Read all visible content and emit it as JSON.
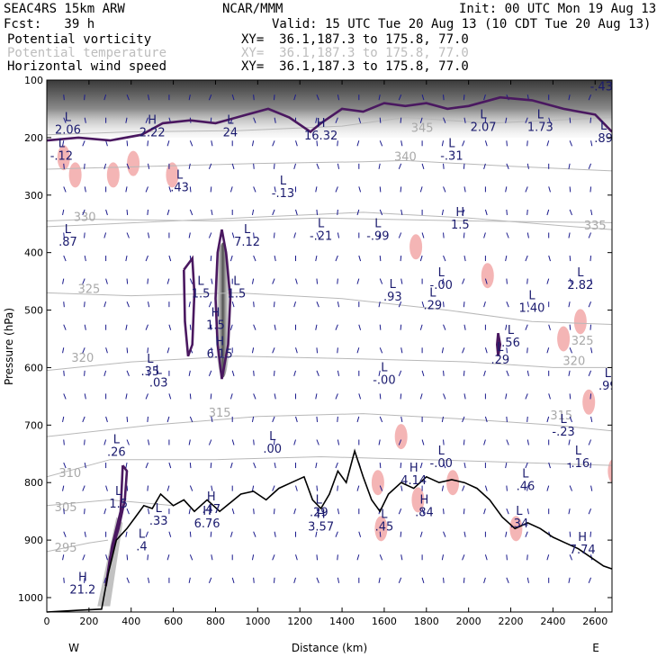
{
  "header": {
    "model": "SEAC4RS 15km ARW",
    "org": "NCAR/MMM",
    "init": "Init: 00 UTC Mon 19 Aug 13",
    "fcst": "Fcst:   39 h",
    "valid": "Valid: 15 UTC Tue 20 Aug 13 (10 CDT Tue 20 Aug 13)",
    "fields": [
      {
        "name": "Potential vorticity",
        "xy": "XY=  36.1,187.3 to 175.8, 77.0",
        "color": "#000000"
      },
      {
        "name": "Potential temperature",
        "xy": "XY=  36.1,187.3 to 175.8, 77.0",
        "color": "#bdbdbd"
      },
      {
        "name": "Horizontal wind speed",
        "xy": "XY=  36.1,187.3 to 175.8, 77.0",
        "color": "#000000"
      }
    ]
  },
  "chart_data": {
    "type": "cross-section",
    "xlabel": "Distance (km)",
    "ylabel": "Pressure (hPa)",
    "xlim": [
      0,
      2680
    ],
    "ylim": [
      1050,
      100
    ],
    "x_ticks": [
      "0",
      "200",
      "400",
      "600",
      "800",
      "1000",
      "1200",
      "1400",
      "1600",
      "1800",
      "2000",
      "2200",
      "2400",
      "2600"
    ],
    "y_ticks": [
      "100",
      "200",
      "300",
      "400",
      "500",
      "600",
      "700",
      "800",
      "900",
      "1000"
    ],
    "x_tick_values": [
      0,
      200,
      400,
      600,
      800,
      1000,
      1200,
      1400,
      1600,
      1800,
      2000,
      2200,
      2400,
      2600
    ],
    "y_tick_values": [
      100,
      200,
      300,
      400,
      500,
      600,
      700,
      800,
      900,
      1000
    ],
    "end_labels": {
      "left": "W",
      "right": "E"
    },
    "terrain": [
      [
        0,
        1025
      ],
      [
        150,
        1022
      ],
      [
        260,
        1020
      ],
      [
        290,
        960
      ],
      [
        330,
        900
      ],
      [
        380,
        880
      ],
      [
        420,
        860
      ],
      [
        460,
        840
      ],
      [
        500,
        845
      ],
      [
        540,
        820
      ],
      [
        600,
        840
      ],
      [
        650,
        830
      ],
      [
        700,
        850
      ],
      [
        760,
        830
      ],
      [
        820,
        850
      ],
      [
        870,
        835
      ],
      [
        920,
        820
      ],
      [
        980,
        815
      ],
      [
        1040,
        830
      ],
      [
        1100,
        810
      ],
      [
        1160,
        800
      ],
      [
        1220,
        790
      ],
      [
        1260,
        830
      ],
      [
        1300,
        845
      ],
      [
        1340,
        820
      ],
      [
        1380,
        780
      ],
      [
        1420,
        800
      ],
      [
        1460,
        745
      ],
      [
        1500,
        790
      ],
      [
        1540,
        830
      ],
      [
        1580,
        850
      ],
      [
        1620,
        820
      ],
      [
        1680,
        800
      ],
      [
        1740,
        810
      ],
      [
        1800,
        790
      ],
      [
        1860,
        800
      ],
      [
        1920,
        795
      ],
      [
        1980,
        800
      ],
      [
        2040,
        810
      ],
      [
        2100,
        830
      ],
      [
        2160,
        860
      ],
      [
        2220,
        880
      ],
      [
        2280,
        870
      ],
      [
        2340,
        880
      ],
      [
        2400,
        895
      ],
      [
        2460,
        905
      ],
      [
        2520,
        915
      ],
      [
        2580,
        930
      ],
      [
        2640,
        945
      ],
      [
        2680,
        950
      ]
    ],
    "theta_contours": [
      {
        "label": "345",
        "points": [
          [
            0,
            195
          ],
          [
            400,
            190
          ],
          [
            900,
            188
          ],
          [
            1400,
            180
          ],
          [
            1700,
            165
          ],
          [
            2100,
            175
          ],
          [
            2680,
            165
          ]
        ]
      },
      {
        "label": "340",
        "points": [
          [
            0,
            255
          ],
          [
            500,
            250
          ],
          [
            1000,
            245
          ],
          [
            1500,
            242
          ],
          [
            1700,
            240
          ],
          [
            2200,
            250
          ],
          [
            2680,
            258
          ]
        ]
      },
      {
        "label": "335",
        "points": [
          [
            0,
            355
          ],
          [
            300,
            350
          ],
          [
            900,
            340
          ],
          [
            1500,
            330
          ],
          [
            2000,
            340
          ],
          [
            2500,
            355
          ],
          [
            2680,
            360
          ]
        ]
      },
      {
        "label": "330",
        "points": [
          [
            0,
            345
          ],
          [
            200,
            342
          ],
          [
            800,
            345
          ],
          [
            1300,
            340
          ],
          [
            2000,
            345
          ],
          [
            2680,
            348
          ]
        ]
      },
      {
        "label": "325",
        "points": [
          [
            0,
            470
          ],
          [
            400,
            475
          ],
          [
            900,
            470
          ],
          [
            1400,
            480
          ],
          [
            1900,
            500
          ],
          [
            2300,
            520
          ],
          [
            2680,
            525
          ]
        ]
      },
      {
        "label": "320",
        "points": [
          [
            0,
            605
          ],
          [
            400,
            590
          ],
          [
            900,
            580
          ],
          [
            1500,
            585
          ],
          [
            2000,
            590
          ],
          [
            2400,
            600
          ],
          [
            2680,
            600
          ]
        ]
      },
      {
        "label": "315",
        "points": [
          [
            0,
            720
          ],
          [
            500,
            700
          ],
          [
            1000,
            685
          ],
          [
            1500,
            680
          ],
          [
            2000,
            690
          ],
          [
            2400,
            700
          ],
          [
            2680,
            710
          ]
        ]
      },
      {
        "label": "310",
        "points": [
          [
            0,
            790
          ],
          [
            300,
            760
          ],
          [
            800,
            760
          ],
          [
            1300,
            755
          ],
          [
            1800,
            760
          ],
          [
            2680,
            770
          ]
        ]
      },
      {
        "label": "305",
        "points": [
          [
            0,
            840
          ],
          [
            300,
            830
          ],
          [
            600,
            840
          ]
        ]
      },
      {
        "label": "295",
        "points": [
          [
            0,
            920
          ],
          [
            200,
            905
          ],
          [
            290,
            900
          ]
        ]
      }
    ],
    "pv_contours": [
      [
        [
          0,
          205
        ],
        [
          150,
          200
        ],
        [
          300,
          205
        ],
        [
          450,
          195
        ],
        [
          550,
          175
        ],
        [
          680,
          170
        ],
        [
          800,
          175
        ],
        [
          950,
          160
        ],
        [
          1050,
          150
        ],
        [
          1150,
          165
        ],
        [
          1250,
          190
        ],
        [
          1300,
          175
        ],
        [
          1400,
          150
        ],
        [
          1500,
          155
        ],
        [
          1600,
          140
        ],
        [
          1700,
          145
        ],
        [
          1800,
          140
        ],
        [
          1900,
          150
        ],
        [
          2000,
          145
        ],
        [
          2150,
          130
        ],
        [
          2300,
          135
        ],
        [
          2450,
          150
        ],
        [
          2600,
          160
        ],
        [
          2680,
          190
        ]
      ],
      [
        [
          830,
          620
        ],
        [
          810,
          560
        ],
        [
          800,
          480
        ],
        [
          810,
          400
        ],
        [
          830,
          360
        ],
        [
          850,
          400
        ],
        [
          870,
          480
        ],
        [
          860,
          560
        ],
        [
          830,
          620
        ]
      ],
      [
        [
          650,
          430
        ],
        [
          690,
          410
        ],
        [
          700,
          470
        ],
        [
          690,
          560
        ],
        [
          670,
          580
        ],
        [
          655,
          520
        ],
        [
          650,
          430
        ]
      ],
      [
        [
          360,
          770
        ],
        [
          380,
          780
        ],
        [
          370,
          830
        ],
        [
          340,
          880
        ],
        [
          300,
          930
        ],
        [
          280,
          980
        ],
        [
          310,
          910
        ],
        [
          350,
          850
        ],
        [
          360,
          770
        ]
      ],
      [
        [
          2140,
          540
        ],
        [
          2150,
          560
        ],
        [
          2140,
          580
        ],
        [
          2135,
          560
        ],
        [
          2140,
          540
        ]
      ]
    ],
    "pv_shading": [
      {
        "x": 0,
        "p": 100,
        "w": 2680,
        "h": 60,
        "opacity": 0.6
      },
      {
        "x": 820,
        "p": 360,
        "w": 50,
        "h": 260,
        "opacity": 0.45
      },
      {
        "x": 250,
        "p": 880,
        "w": 60,
        "h": 140,
        "opacity": 0.35
      }
    ],
    "wind_speed_maxima": [
      [
        1720,
        210
      ],
      [
        1180,
        230
      ],
      [
        1690,
        320
      ],
      [
        2220,
        560
      ],
      [
        2320,
        570
      ],
      [
        2390,
        665
      ],
      [
        2600,
        720
      ]
    ],
    "pink_areas": [
      [
        80,
        235
      ],
      [
        135,
        265
      ],
      [
        315,
        265
      ],
      [
        410,
        245
      ],
      [
        595,
        265
      ],
      [
        1750,
        390
      ],
      [
        2090,
        440
      ],
      [
        2450,
        550
      ],
      [
        2530,
        520
      ],
      [
        2570,
        660
      ],
      [
        2690,
        780
      ],
      [
        1680,
        720
      ],
      [
        1925,
        800
      ],
      [
        1760,
        830
      ],
      [
        1585,
        880
      ],
      [
        1570,
        800
      ],
      [
        2225,
        880
      ]
    ],
    "extrema": [
      {
        "type": "L",
        "value": "2.06",
        "x": 100,
        "p": 190
      },
      {
        "type": "H",
        "value": "2.22",
        "x": 500,
        "p": 195
      },
      {
        "type": "L",
        "value": "24",
        "x": 870,
        "p": 195
      },
      {
        "type": "H",
        "value": "16.32",
        "x": 1300,
        "p": 200
      },
      {
        "type": "L",
        "value": "-.12",
        "x": 70,
        "p": 235
      },
      {
        "type": "L",
        "value": ".43",
        "x": 630,
        "p": 290
      },
      {
        "type": "L",
        "value": "-.13",
        "x": 1120,
        "p": 300
      },
      {
        "type": "L",
        "value": "-.31",
        "x": 1920,
        "p": 235
      },
      {
        "type": "L",
        "value": "2.07",
        "x": 2070,
        "p": 185
      },
      {
        "type": "L",
        "value": "1.73",
        "x": 2340,
        "p": 185
      },
      {
        "type": "L",
        "value": ".89",
        "x": 2640,
        "p": 205
      },
      {
        "type": "L",
        "value": "-.43",
        "x": 2630,
        "p": 115
      },
      {
        "type": "L",
        "value": ".87",
        "x": 100,
        "p": 385
      },
      {
        "type": "L",
        "value": "7.12",
        "x": 950,
        "p": 385
      },
      {
        "type": "L",
        "value": "-.21",
        "x": 1300,
        "p": 375
      },
      {
        "type": "L",
        "value": "-.99",
        "x": 1570,
        "p": 375
      },
      {
        "type": "H",
        "value": "1.5",
        "x": 1960,
        "p": 355
      },
      {
        "type": "L",
        "value": "1.5",
        "x": 730,
        "p": 475
      },
      {
        "type": "L",
        "value": "1.5",
        "x": 900,
        "p": 475
      },
      {
        "type": "L",
        "value": ".93",
        "x": 1640,
        "p": 480
      },
      {
        "type": "L",
        "value": ".29",
        "x": 1830,
        "p": 495
      },
      {
        "type": "L",
        "value": "-.00",
        "x": 1870,
        "p": 460
      },
      {
        "type": "L",
        "value": "1.40",
        "x": 2300,
        "p": 500
      },
      {
        "type": "L",
        "value": "2.82",
        "x": 2530,
        "p": 460
      },
      {
        "type": "H",
        "value": "1.5",
        "x": 800,
        "p": 530
      },
      {
        "type": "H",
        "value": "6.15",
        "x": 820,
        "p": 580
      },
      {
        "type": "L",
        "value": ".56",
        "x": 2200,
        "p": 560
      },
      {
        "type": "L",
        "value": ".29",
        "x": 2150,
        "p": 590
      },
      {
        "type": "L",
        "value": ".35",
        "x": 490,
        "p": 610
      },
      {
        "type": "L",
        "value": ".03",
        "x": 530,
        "p": 630
      },
      {
        "type": "L",
        "value": "-.00",
        "x": 1600,
        "p": 625
      },
      {
        "type": "L",
        "value": ".99",
        "x": 2660,
        "p": 635
      },
      {
        "type": "L",
        "value": "-.23",
        "x": 2450,
        "p": 715
      },
      {
        "type": "L",
        "value": ".26",
        "x": 330,
        "p": 750
      },
      {
        "type": "L",
        "value": ".00",
        "x": 1070,
        "p": 745
      },
      {
        "type": "L",
        "value": "-.16",
        "x": 2520,
        "p": 770
      },
      {
        "type": "L",
        "value": "-.00",
        "x": 1870,
        "p": 770
      },
      {
        "type": "H",
        "value": "4.14",
        "x": 1740,
        "p": 800
      },
      {
        "type": "L",
        "value": ".46",
        "x": 2270,
        "p": 810
      },
      {
        "type": "L",
        "value": "1.5",
        "x": 340,
        "p": 840
      },
      {
        "type": "H",
        "value": ".47",
        "x": 780,
        "p": 850
      },
      {
        "type": "H",
        "value": "6.76",
        "x": 760,
        "p": 875
      },
      {
        "type": "L",
        "value": ".33",
        "x": 530,
        "p": 870
      },
      {
        "type": "L",
        "value": ".29",
        "x": 1290,
        "p": 855
      },
      {
        "type": "H",
        "value": "3.57",
        "x": 1300,
        "p": 880
      },
      {
        "type": "H",
        "value": ".84",
        "x": 1790,
        "p": 855
      },
      {
        "type": "L",
        "value": ".45",
        "x": 1600,
        "p": 880
      },
      {
        "type": "L",
        "value": ".34",
        "x": 2240,
        "p": 875
      },
      {
        "type": "H",
        "value": "7.74",
        "x": 2540,
        "p": 920
      },
      {
        "type": "L",
        "value": ".4",
        "x": 450,
        "p": 915
      },
      {
        "type": "H",
        "value": "21.2",
        "x": 170,
        "p": 990
      }
    ],
    "theta_labels": [
      {
        "text": "345",
        "x": 1780,
        "p": 190
      },
      {
        "text": "340",
        "x": 1700,
        "p": 240
      },
      {
        "text": "335",
        "x": 2600,
        "p": 360
      },
      {
        "text": "330",
        "x": 180,
        "p": 345
      },
      {
        "text": "325",
        "x": 200,
        "p": 470
      },
      {
        "text": "325",
        "x": 2540,
        "p": 560
      },
      {
        "text": "320",
        "x": 170,
        "p": 590
      },
      {
        "text": "320",
        "x": 2500,
        "p": 595
      },
      {
        "text": "315",
        "x": 2440,
        "p": 690
      },
      {
        "text": "315",
        "x": 820,
        "p": 685
      },
      {
        "text": "310",
        "x": 110,
        "p": 790
      },
      {
        "text": "305",
        "x": 90,
        "p": 850
      },
      {
        "text": "295",
        "x": 90,
        "p": 920
      }
    ]
  }
}
